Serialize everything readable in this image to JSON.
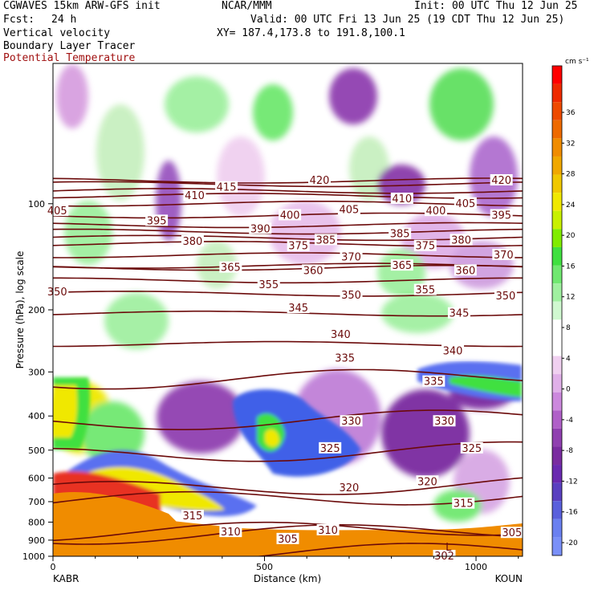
{
  "header": {
    "model": "CGWAVES 15km ARW-GFS init",
    "org": "NCAR/MMM",
    "init": "Init: 00 UTC Thu 12 Jun 25",
    "fcst_label": "Fcst:",
    "fcst_value": "24 h",
    "valid": "Valid: 00 UTC Fri 13 Jun 25 (19 CDT Thu 12 Jun 25)",
    "field1": "Vertical velocity",
    "field2": "Boundary Layer Tracer",
    "field3": "Potential Temperature",
    "xy": "XY= 187.4,173.8 to 191.8,100.1"
  },
  "colors": {
    "theta_contour": "#6b0a0a",
    "tracer_fill": "#f08c00"
  },
  "chart_data": {
    "type": "heatmap",
    "xlabel": "Distance (km)",
    "ylabel": "Pressure (hPa), log scale",
    "x_ticks": [
      0,
      500,
      1000
    ],
    "xlim": [
      0,
      1110
    ],
    "ylim": [
      1000,
      40
    ],
    "y_scale": "log",
    "y_ticks": [
      100,
      200,
      300,
      400,
      500,
      600,
      700,
      800,
      900,
      1000
    ],
    "x_endpoints": {
      "left": "KABR",
      "right": "KOUN"
    },
    "colorbar": {
      "units": "cm s⁻¹",
      "labels": [
        36,
        32,
        28,
        24,
        20,
        16,
        12,
        8,
        4,
        0,
        -4,
        -8,
        -12,
        -16,
        -20
      ],
      "colors": [
        "#ff0000",
        "#ee2a00",
        "#ee4a00",
        "#ee6a00",
        "#f08c00",
        "#f0a800",
        "#f0c800",
        "#f0e800",
        "#c8f000",
        "#80ec00",
        "#40e040",
        "#70e870",
        "#a0f0a0",
        "#d0f8d0",
        "#ffffff",
        "#ffffff",
        "#f0d0f0",
        "#e0b0e8",
        "#cc88dd",
        "#b060c8",
        "#9040b0",
        "#7a2ca0",
        "#6a2ab0",
        "#5a40c0",
        "#5a60dc",
        "#6a80f0",
        "#7a90f8"
      ]
    },
    "theta_contours": [
      {
        "value": 302,
        "p": 1000
      },
      {
        "value": 305,
        "p": 880
      },
      {
        "value": 310,
        "p": 860
      },
      {
        "value": 315,
        "p": 700
      },
      {
        "value": 320,
        "p": 650
      },
      {
        "value": 325,
        "p": 520
      },
      {
        "value": 330,
        "p": 420
      },
      {
        "value": 335,
        "p": 320
      },
      {
        "value": 340,
        "p": 250
      },
      {
        "value": 345,
        "p": 205
      },
      {
        "value": 350,
        "p": 180
      },
      {
        "value": 355,
        "p": 165
      },
      {
        "value": 360,
        "p": 152
      },
      {
        "value": 365,
        "p": 150
      },
      {
        "value": 370,
        "p": 140
      },
      {
        "value": 375,
        "p": 130
      },
      {
        "value": 380,
        "p": 125
      },
      {
        "value": 385,
        "p": 120
      },
      {
        "value": 390,
        "p": 115
      },
      {
        "value": 395,
        "p": 108
      },
      {
        "value": 400,
        "p": 100
      },
      {
        "value": 405,
        "p": 95
      },
      {
        "value": 410,
        "p": 92
      },
      {
        "value": 415,
        "p": 88
      },
      {
        "value": 420,
        "p": 86
      }
    ],
    "theta_labels": [
      {
        "text": "405",
        "x": 10,
        "p": 105
      },
      {
        "text": "410",
        "x": 335,
        "p": 95
      },
      {
        "text": "415",
        "x": 410,
        "p": 90
      },
      {
        "text": "420",
        "x": 630,
        "p": 86
      },
      {
        "text": "420",
        "x": 1060,
        "p": 86
      },
      {
        "text": "395",
        "x": 245,
        "p": 112
      },
      {
        "text": "390",
        "x": 490,
        "p": 118
      },
      {
        "text": "400",
        "x": 560,
        "p": 108
      },
      {
        "text": "405",
        "x": 700,
        "p": 104
      },
      {
        "text": "410",
        "x": 825,
        "p": 97
      },
      {
        "text": "400",
        "x": 905,
        "p": 105
      },
      {
        "text": "405",
        "x": 975,
        "p": 100
      },
      {
        "text": "395",
        "x": 1060,
        "p": 108
      },
      {
        "text": "380",
        "x": 330,
        "p": 128
      },
      {
        "text": "375",
        "x": 580,
        "p": 132
      },
      {
        "text": "385",
        "x": 645,
        "p": 127
      },
      {
        "text": "385",
        "x": 820,
        "p": 122
      },
      {
        "text": "370",
        "x": 705,
        "p": 142
      },
      {
        "text": "375",
        "x": 880,
        "p": 132
      },
      {
        "text": "380",
        "x": 965,
        "p": 127
      },
      {
        "text": "370",
        "x": 1065,
        "p": 140
      },
      {
        "text": "365",
        "x": 420,
        "p": 152
      },
      {
        "text": "360",
        "x": 615,
        "p": 155
      },
      {
        "text": "365",
        "x": 825,
        "p": 150
      },
      {
        "text": "360",
        "x": 975,
        "p": 155
      },
      {
        "text": "350",
        "x": 10,
        "p": 178
      },
      {
        "text": "355",
        "x": 510,
        "p": 170
      },
      {
        "text": "350",
        "x": 705,
        "p": 182
      },
      {
        "text": "355",
        "x": 880,
        "p": 176
      },
      {
        "text": "350",
        "x": 1070,
        "p": 183
      },
      {
        "text": "345",
        "x": 580,
        "p": 198
      },
      {
        "text": "345",
        "x": 960,
        "p": 205
      },
      {
        "text": "340",
        "x": 680,
        "p": 235
      },
      {
        "text": "340",
        "x": 945,
        "p": 262
      },
      {
        "text": "335",
        "x": 690,
        "p": 275
      },
      {
        "text": "335",
        "x": 900,
        "p": 320
      },
      {
        "text": "330",
        "x": 705,
        "p": 415
      },
      {
        "text": "330",
        "x": 925,
        "p": 415
      },
      {
        "text": "325",
        "x": 655,
        "p": 495
      },
      {
        "text": "325",
        "x": 990,
        "p": 495
      },
      {
        "text": "320",
        "x": 700,
        "p": 640
      },
      {
        "text": "320",
        "x": 885,
        "p": 615
      },
      {
        "text": "315",
        "x": 330,
        "p": 770
      },
      {
        "text": "315",
        "x": 970,
        "p": 710
      },
      {
        "text": "310",
        "x": 420,
        "p": 855
      },
      {
        "text": "310",
        "x": 650,
        "p": 845
      },
      {
        "text": "305",
        "x": 555,
        "p": 895
      },
      {
        "text": "305",
        "x": 1085,
        "p": 860
      },
      {
        "text": "302",
        "x": 925,
        "p": 1000
      }
    ],
    "low_marker": {
      "text": "L",
      "x": 935,
      "p": 965
    }
  }
}
